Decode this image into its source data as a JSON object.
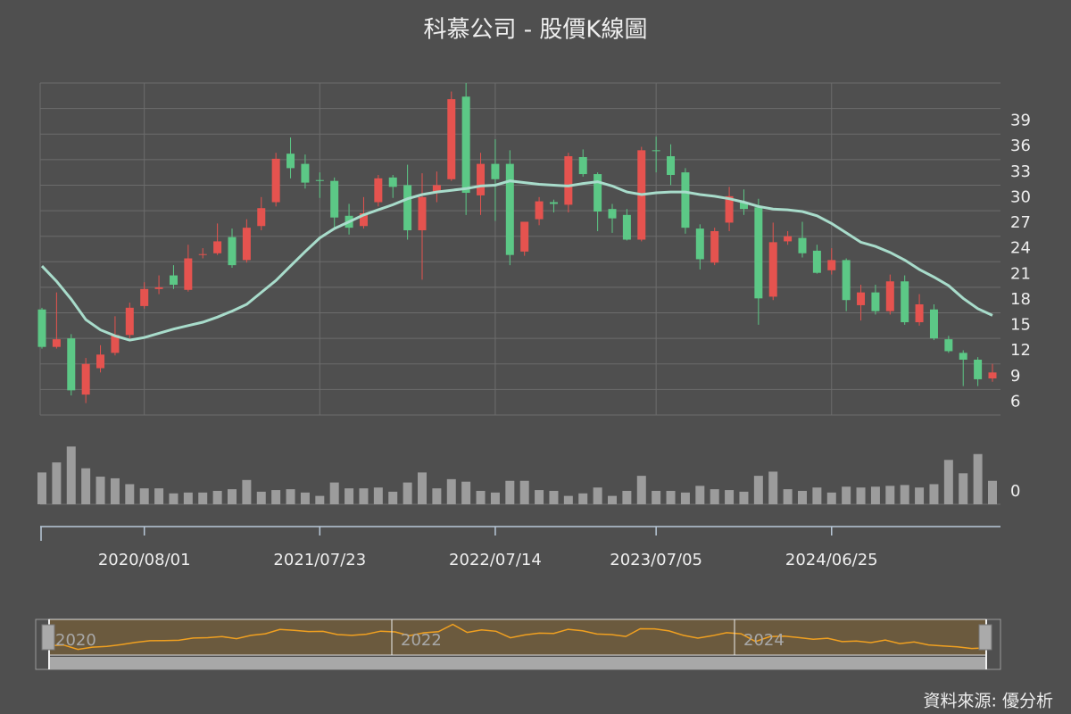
{
  "chart_data": {
    "type": "candlestick",
    "title": "科慕公司 - 股價K線圖",
    "source": "資料來源: 優分析",
    "categories": [
      null,
      null,
      null,
      null,
      null,
      null,
      null,
      "2020/08/01",
      null,
      null,
      null,
      null,
      null,
      null,
      null,
      null,
      null,
      null,
      null,
      "2021/07/23",
      null,
      null,
      null,
      null,
      null,
      null,
      null,
      null,
      null,
      null,
      null,
      "2022/07/14",
      null,
      null,
      null,
      null,
      null,
      null,
      null,
      null,
      null,
      null,
      "2023/07/05",
      null,
      null,
      null,
      null,
      null,
      null,
      null,
      null,
      null,
      null,
      null,
      "2024/06/25",
      null,
      null,
      null,
      null,
      null,
      null,
      null,
      null,
      null,
      null,
      null
    ],
    "open": [
      15.4,
      11.0,
      12.0,
      5.4,
      8.5,
      10.3,
      12.4,
      15.8,
      17.8,
      19.4,
      17.7,
      21.8,
      22.0,
      23.9,
      21.2,
      25.2,
      28.0,
      33.7,
      32.5,
      30.6,
      30.5,
      26.4,
      25.2,
      28.0,
      30.9,
      30.0,
      24.7,
      29.2,
      30.7,
      40.4,
      28.8,
      32.5,
      32.5,
      22.2,
      26.0,
      28.0,
      27.7,
      33.3,
      31.3,
      27.2,
      26.5,
      23.6,
      34.1,
      33.4,
      31.5,
      24.9,
      20.9,
      25.6,
      28.0,
      27.4,
      16.9,
      23.4,
      23.8,
      22.3,
      20.0,
      21.2,
      15.9,
      17.4,
      15.2,
      18.7,
      13.9,
      15.4,
      11.9,
      10.3,
      9.5,
      7.3
    ],
    "close": [
      11.0,
      11.9,
      5.9,
      9.0,
      10.1,
      12.4,
      15.6,
      17.8,
      18.0,
      18.3,
      21.4,
      21.9,
      23.4,
      20.6,
      25.0,
      27.3,
      33.1,
      32.0,
      30.3,
      30.5,
      26.2,
      25.0,
      26.7,
      30.8,
      29.8,
      24.7,
      28.6,
      30.0,
      40.1,
      29.1,
      32.5,
      30.7,
      21.8,
      25.7,
      28.1,
      27.8,
      33.4,
      31.3,
      26.9,
      26.1,
      23.6,
      34.1,
      34.0,
      31.2,
      25.0,
      21.3,
      24.6,
      28.7,
      27.2,
      16.7,
      23.3,
      24.0,
      22.0,
      19.7,
      21.2,
      16.5,
      17.4,
      15.2,
      18.7,
      13.9,
      16.0,
      12.0,
      10.5,
      9.5,
      7.2,
      8.0
    ],
    "low": [
      10.8,
      10.8,
      5.3,
      4.4,
      8.0,
      10.0,
      12.0,
      15.5,
      17.2,
      17.8,
      17.5,
      21.4,
      21.8,
      20.3,
      20.9,
      24.7,
      27.5,
      30.8,
      29.6,
      28.5,
      25.0,
      24.2,
      24.9,
      27.5,
      28.5,
      23.6,
      18.9,
      28.0,
      30.5,
      26.5,
      26.5,
      25.8,
      20.6,
      21.7,
      25.3,
      26.8,
      26.8,
      31.0,
      24.6,
      24.4,
      23.5,
      23.4,
      31.5,
      30.0,
      24.3,
      20.1,
      20.6,
      24.6,
      26.5,
      13.6,
      16.5,
      23.0,
      21.5,
      19.6,
      19.5,
      15.2,
      14.1,
      14.8,
      14.8,
      13.6,
      13.5,
      11.8,
      10.3,
      6.4,
      6.4,
      6.9
    ],
    "high": [
      15.6,
      17.4,
      12.5,
      9.7,
      11.2,
      14.6,
      16.2,
      18.6,
      19.4,
      20.6,
      23.0,
      22.6,
      25.5,
      24.9,
      26.0,
      28.6,
      33.8,
      35.6,
      33.6,
      31.5,
      30.9,
      27.8,
      28.6,
      31.2,
      31.2,
      32.4,
      31.4,
      31.6,
      41.0,
      42.0,
      33.8,
      35.4,
      34.1,
      25.7,
      28.6,
      28.3,
      33.8,
      34.2,
      31.5,
      27.8,
      27.2,
      34.5,
      35.7,
      34.8,
      32.0,
      25.4,
      25.0,
      29.8,
      29.5,
      28.4,
      25.6,
      24.6,
      25.7,
      23.0,
      22.6,
      21.4,
      18.3,
      18.3,
      19.5,
      19.4,
      17.2,
      16.0,
      12.3,
      10.6,
      9.8,
      9.0
    ],
    "up_color": "#e5534f",
    "down_color": "#5cc886",
    "ma": {
      "color": "#a8dccb",
      "values": [
        20.5,
        18.7,
        16.6,
        14.2,
        13.0,
        12.3,
        11.8,
        12.1,
        12.6,
        13.1,
        13.5,
        13.9,
        14.5,
        15.2,
        16.0,
        17.4,
        18.8,
        20.5,
        22.2,
        23.8,
        24.9,
        25.7,
        26.5,
        27.1,
        27.7,
        28.4,
        28.9,
        29.2,
        29.4,
        29.6,
        29.9,
        30.0,
        30.5,
        30.3,
        30.1,
        30.0,
        29.9,
        30.2,
        30.4,
        29.9,
        29.2,
        28.9,
        29.1,
        29.2,
        29.2,
        28.9,
        28.7,
        28.4,
        28.0,
        27.5,
        27.2,
        27.1,
        26.9,
        26.4,
        25.5,
        24.4,
        23.3,
        22.8,
        22.1,
        21.2,
        20.1,
        19.2,
        18.2,
        16.7,
        15.5,
        14.7
      ]
    },
    "volume": {
      "color": "#9c9c9c",
      "values": [
        38,
        50,
        69,
        43,
        33,
        31,
        24,
        19,
        19,
        13,
        14,
        14,
        16,
        18,
        29,
        15,
        17,
        18,
        14,
        10,
        26,
        19,
        19,
        20,
        15,
        26,
        38,
        19,
        30,
        27,
        16,
        14,
        28,
        28,
        17,
        16,
        10,
        13,
        20,
        10,
        16,
        34,
        16,
        16,
        14,
        22,
        18,
        17,
        15,
        34,
        39,
        18,
        16,
        20,
        14,
        21,
        20,
        21,
        22,
        23,
        20,
        24,
        53,
        37,
        60,
        28
      ],
      "ylim": [
        0,
        80
      ],
      "yticks": [
        0
      ]
    },
    "ylim": [
      3,
      42
    ],
    "yticks": [
      6,
      9,
      12,
      15,
      18,
      21,
      24,
      27,
      30,
      33,
      36,
      39
    ],
    "grid": true,
    "zoom_labels": [
      "2020",
      "2022",
      "2024"
    ]
  }
}
